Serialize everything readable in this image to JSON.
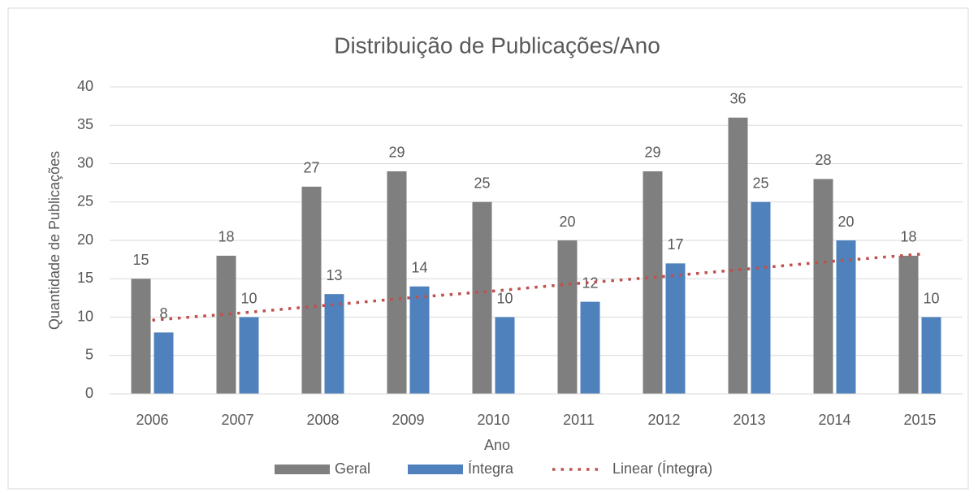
{
  "chart_data": {
    "type": "bar",
    "title": "Distribuição de Publicações/Ano",
    "x_label": "Ano",
    "y_label": "Quantidade de Publicações",
    "categories": [
      "2006",
      "2007",
      "2008",
      "2009",
      "2010",
      "2011",
      "2012",
      "2013",
      "2014",
      "2015"
    ],
    "series": [
      {
        "name": "Geral",
        "color": "#7f7f7f",
        "values": [
          15,
          18,
          27,
          29,
          25,
          20,
          29,
          36,
          28,
          18
        ]
      },
      {
        "name": "Íntegra",
        "color": "#4f81bd",
        "values": [
          8,
          10,
          13,
          14,
          10,
          12,
          17,
          25,
          20,
          10
        ]
      },
      {
        "name": "Linear (Íntegra)",
        "color": "#c0504d",
        "style": "dotted",
        "values": [
          9.6,
          10.5,
          11.5,
          12.5,
          13.4,
          14.4,
          15.3,
          16.3,
          17.3,
          18.2
        ]
      }
    ],
    "ylim": [
      0,
      40
    ],
    "yticks": [
      0,
      5,
      10,
      15,
      20,
      25,
      30,
      35,
      40
    ],
    "grid": true,
    "legend": "bottom"
  }
}
